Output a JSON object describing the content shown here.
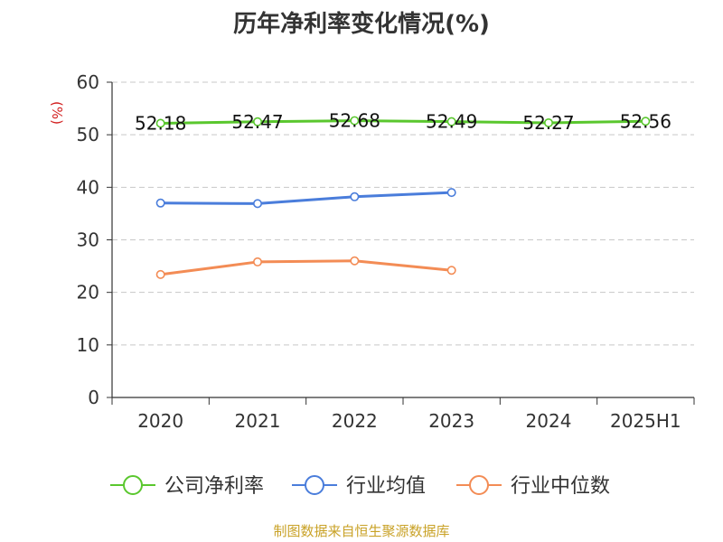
{
  "title": "历年净利率变化情况(%)",
  "y_unit": "(%)",
  "source": "制图数据来自恒生聚源数据库",
  "colors": {
    "company": "#5ac72e",
    "industry_avg": "#4a7ddb",
    "industry_median": "#f38c55",
    "grid": "#c8c8c8",
    "axis": "#333333"
  },
  "chart_data": {
    "type": "line",
    "title": "历年净利率变化情况(%)",
    "xlabel": "",
    "ylabel": "(%)",
    "categories": [
      "2020",
      "2021",
      "2022",
      "2023",
      "2024",
      "2025H1"
    ],
    "ylim": [
      0,
      60
    ],
    "yticks": [
      0,
      10,
      20,
      30,
      40,
      50,
      60
    ],
    "grid": true,
    "legend_position": "bottom",
    "series": [
      {
        "name": "公司净利率",
        "values": [
          52.18,
          52.47,
          52.68,
          52.49,
          52.27,
          52.56
        ],
        "labels": [
          "52.18",
          "52.47",
          "52.68",
          "52.49",
          "52.27",
          "52.56"
        ]
      },
      {
        "name": "行业均值",
        "values": [
          37.0,
          36.9,
          38.2,
          39.0,
          null,
          null
        ]
      },
      {
        "name": "行业中位数",
        "values": [
          23.4,
          25.8,
          26.0,
          24.2,
          null,
          null
        ]
      }
    ]
  }
}
